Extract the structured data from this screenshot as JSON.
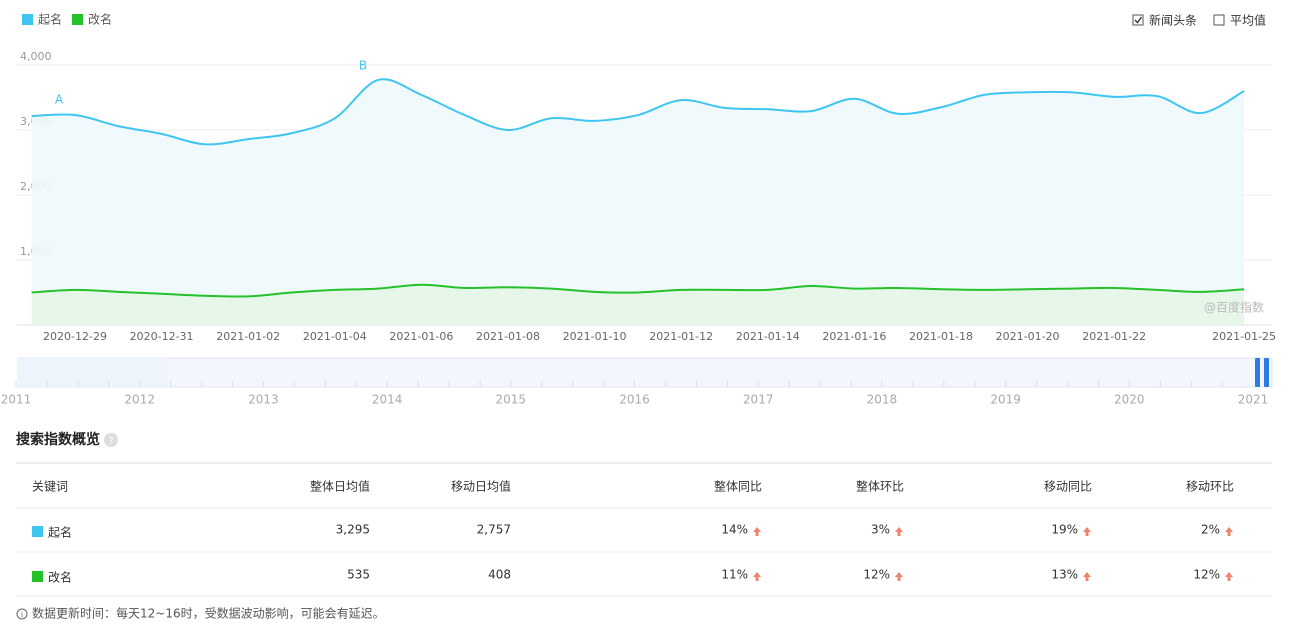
{
  "chart_data": {
    "type": "line",
    "categories": [
      null,
      "2020-12-29",
      null,
      "2020-12-31",
      null,
      "2021-01-02",
      null,
      "2021-01-04",
      null,
      "2021-01-06",
      null,
      "2021-01-08",
      null,
      "2021-01-10",
      null,
      "2021-01-12",
      null,
      "2021-01-14",
      null,
      "2021-01-16",
      null,
      "2021-01-18",
      null,
      "2021-01-20",
      null,
      "2021-01-22",
      null,
      null,
      "2021-01-25"
    ],
    "series": [
      {
        "name": "起名",
        "color": "#3ec6f0",
        "values": [
          3215,
          3230,
          3060,
          2940,
          2780,
          2860,
          2950,
          3180,
          3770,
          3540,
          3230,
          3000,
          3180,
          3140,
          3230,
          3460,
          3340,
          3320,
          3290,
          3480,
          3250,
          3350,
          3540,
          3580,
          3580,
          3510,
          3520,
          3260,
          3600
        ]
      },
      {
        "name": "改名",
        "color": "#25c12b",
        "values": [
          500,
          540,
          510,
          480,
          450,
          440,
          500,
          540,
          560,
          620,
          570,
          580,
          560,
          510,
          500,
          540,
          540,
          540,
          600,
          560,
          570,
          550,
          540,
          550,
          560,
          570,
          540,
          510,
          550
        ]
      }
    ],
    "ylim": [
      0,
      4000
    ],
    "yticks": [
      {
        "value": 1000,
        "label": "1,000"
      },
      {
        "value": 2000,
        "label": "2,000"
      },
      {
        "value": 3000,
        "label": "3,000"
      },
      {
        "value": 4000,
        "label": "4,000"
      }
    ],
    "grid": true,
    "annotations": [
      "A",
      "B"
    ],
    "watermark": "@百度指数"
  },
  "options": [
    {
      "label": "新闻头条",
      "checked": true
    },
    {
      "label": "平均值",
      "checked": false
    }
  ],
  "timeline": {
    "years": [
      "2011",
      "2012",
      "2013",
      "2014",
      "2015",
      "2016",
      "2017",
      "2018",
      "2019",
      "2020",
      "2021"
    ]
  },
  "overview": {
    "title": "搜索指数概览",
    "headers": [
      "关键词",
      "整体日均值",
      "移动日均值",
      "整体同比",
      "整体环比",
      "移动同比",
      "移动环比"
    ],
    "rows": [
      [
        "起名",
        "3,295",
        "2,757",
        "14%",
        "3%",
        "19%",
        "2%"
      ],
      [
        "改名",
        "535",
        "408",
        "11%",
        "12%",
        "13%",
        "12%"
      ]
    ]
  },
  "footnote": "数据更新时间：每天12~16时，受数据波动影响，可能会有延迟。"
}
